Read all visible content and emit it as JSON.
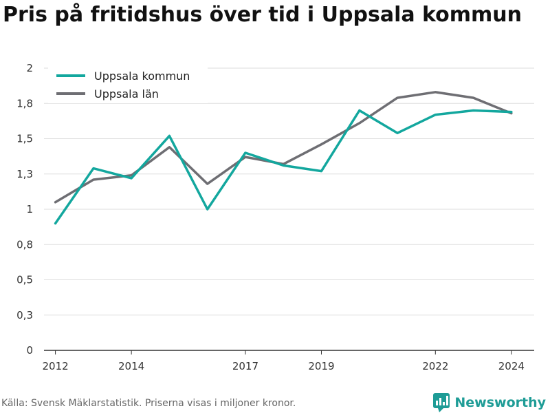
{
  "title": "Pris på fritidshus över tid i Uppsala kommun",
  "source": "Källa: Svensk Mäklarstatistik. Priserna visas i miljoner kronor.",
  "brand": "Newsworthy",
  "colors": {
    "uppsala_kommun": "#13a79e",
    "uppsala_lan": "#6e6e73",
    "grid": "#dddddd",
    "brand": "#1e9c96"
  },
  "chart_data": {
    "type": "line",
    "title": "Pris på fritidshus över tid i Uppsala kommun",
    "xlabel": "",
    "ylabel": "",
    "x": [
      2012,
      2013,
      2014,
      2015,
      2016,
      2017,
      2018,
      2019,
      2020,
      2021,
      2022,
      2023,
      2024
    ],
    "x_ticks": [
      2012,
      2014,
      2017,
      2019,
      2022,
      2024
    ],
    "xlim": [
      2011.7,
      2024.6
    ],
    "y_ticks": [
      0,
      0.25,
      0.5,
      0.75,
      1,
      1.25,
      1.5,
      1.75,
      2
    ],
    "y_tick_labels": [
      "0",
      "0,3",
      "0,5",
      "0,8",
      "1",
      "1,3",
      "1,5",
      "1,8",
      "2"
    ],
    "ylim": [
      0,
      2
    ],
    "grid": true,
    "legend_position": "top-left",
    "series": [
      {
        "name": "Uppsala kommun",
        "color": "#13a79e",
        "values": [
          0.9,
          1.29,
          1.22,
          1.52,
          1.0,
          1.4,
          1.31,
          1.27,
          1.7,
          1.54,
          1.67,
          1.7,
          1.69
        ]
      },
      {
        "name": "Uppsala län",
        "color": "#6e6e73",
        "values": [
          1.05,
          1.21,
          1.24,
          1.44,
          1.18,
          1.37,
          1.32,
          1.46,
          1.61,
          1.79,
          1.83,
          1.79,
          1.68
        ]
      }
    ]
  }
}
